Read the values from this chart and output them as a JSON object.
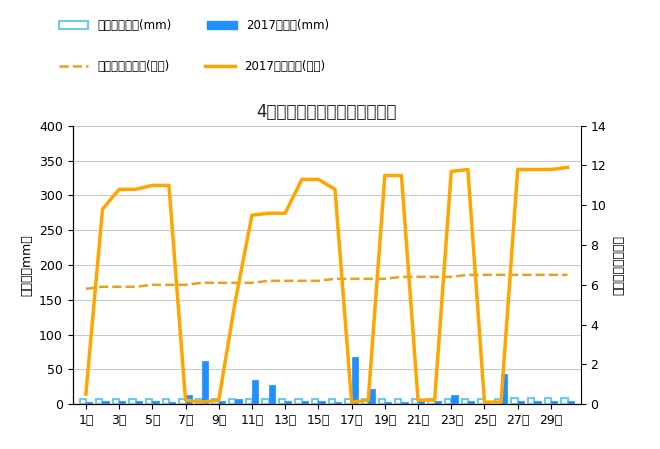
{
  "title": "4月降水量・日照時間（日別）",
  "days": [
    1,
    2,
    3,
    4,
    5,
    6,
    7,
    8,
    9,
    10,
    11,
    12,
    13,
    14,
    15,
    16,
    17,
    18,
    19,
    20,
    21,
    22,
    23,
    24,
    25,
    26,
    27,
    28,
    29,
    30
  ],
  "precip_avg": [
    7,
    7,
    7,
    7,
    7,
    7,
    8,
    8,
    8,
    8,
    8,
    8,
    8,
    8,
    8,
    8,
    8,
    8,
    8,
    8,
    8,
    8,
    8,
    8,
    8,
    8,
    9,
    9,
    9,
    9
  ],
  "precip_2017": [
    3,
    4,
    4,
    4,
    4,
    3,
    13,
    62,
    5,
    8,
    35,
    28,
    4,
    4,
    4,
    3,
    68,
    22,
    3,
    3,
    4,
    4,
    13,
    4,
    5,
    43,
    5,
    5,
    5,
    5
  ],
  "sunshine_avg_val": 6.0,
  "sunshine_2017": [
    0.5,
    9.8,
    10.8,
    10.8,
    11.0,
    11.0,
    0.2,
    0.1,
    0.2,
    5.2,
    9.5,
    9.6,
    9.6,
    11.3,
    11.3,
    10.8,
    0.1,
    0.2,
    11.5,
    11.5,
    0.2,
    0.2,
    11.7,
    11.8,
    0.1,
    0.1,
    11.8,
    11.8,
    11.8,
    11.9
  ],
  "sunshine_avg_approx": [
    5.8,
    5.9,
    5.9,
    5.9,
    6.0,
    6.0,
    6.0,
    6.1,
    6.1,
    6.1,
    6.1,
    6.2,
    6.2,
    6.2,
    6.2,
    6.3,
    6.3,
    6.3,
    6.3,
    6.4,
    6.4,
    6.4,
    6.4,
    6.5,
    6.5,
    6.5,
    6.5,
    6.5,
    6.5,
    6.5
  ],
  "ylabel_left": "降水量（mm）",
  "ylabel_right": "日照時間（時間）",
  "ylim_left": [
    0,
    400
  ],
  "ylim_right": [
    0,
    14
  ],
  "yticks_left": [
    0,
    50,
    100,
    150,
    200,
    250,
    300,
    350,
    400
  ],
  "yticks_right": [
    0,
    2,
    4,
    6,
    8,
    10,
    12,
    14
  ],
  "legend_row1": [
    "降水量平年値(mm)",
    "2017降水量(mm)"
  ],
  "legend_row2": [
    "日照時間平年値(時間)",
    "2017日照時間(時間)"
  ],
  "colors": {
    "precip_avg_edge": "#5BC8E8",
    "precip_2017_bar": "#1E90FF",
    "sunshine_avg_line": "#E8A020",
    "sunshine_2017_line": "#FFA500",
    "grid": "#c8c8c8",
    "text": "#404040"
  },
  "background": "#ffffff"
}
